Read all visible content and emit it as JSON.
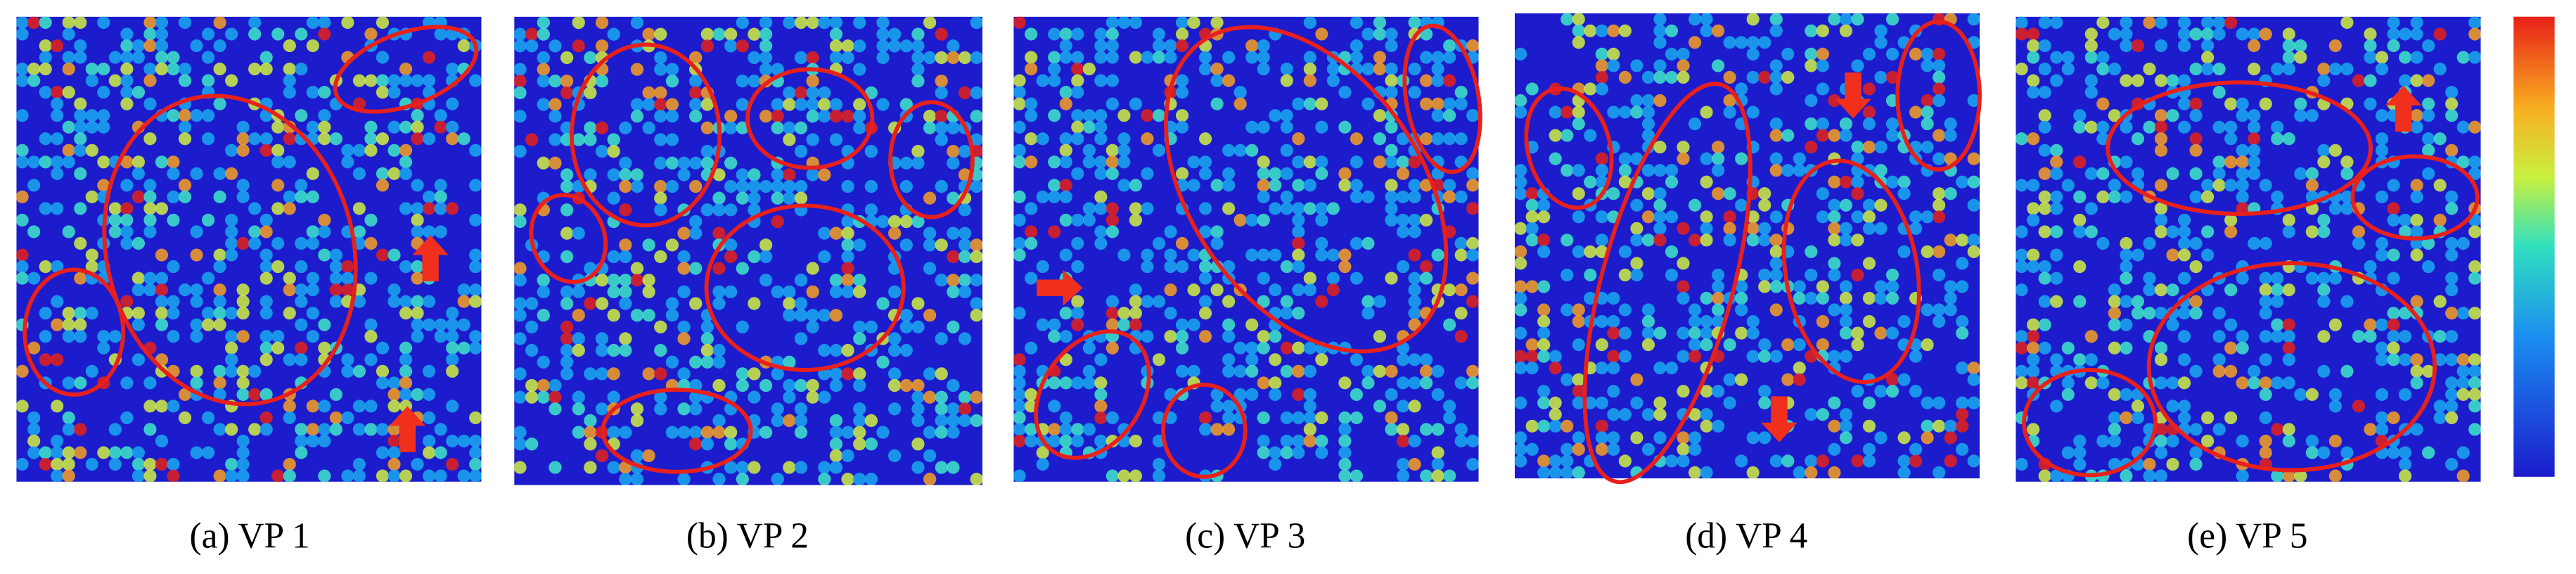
{
  "captions": [
    "(a) VP 1",
    "(b) VP 2",
    "(c) VP 3",
    "(d) VP 4",
    "(e) VP 5"
  ]
}
